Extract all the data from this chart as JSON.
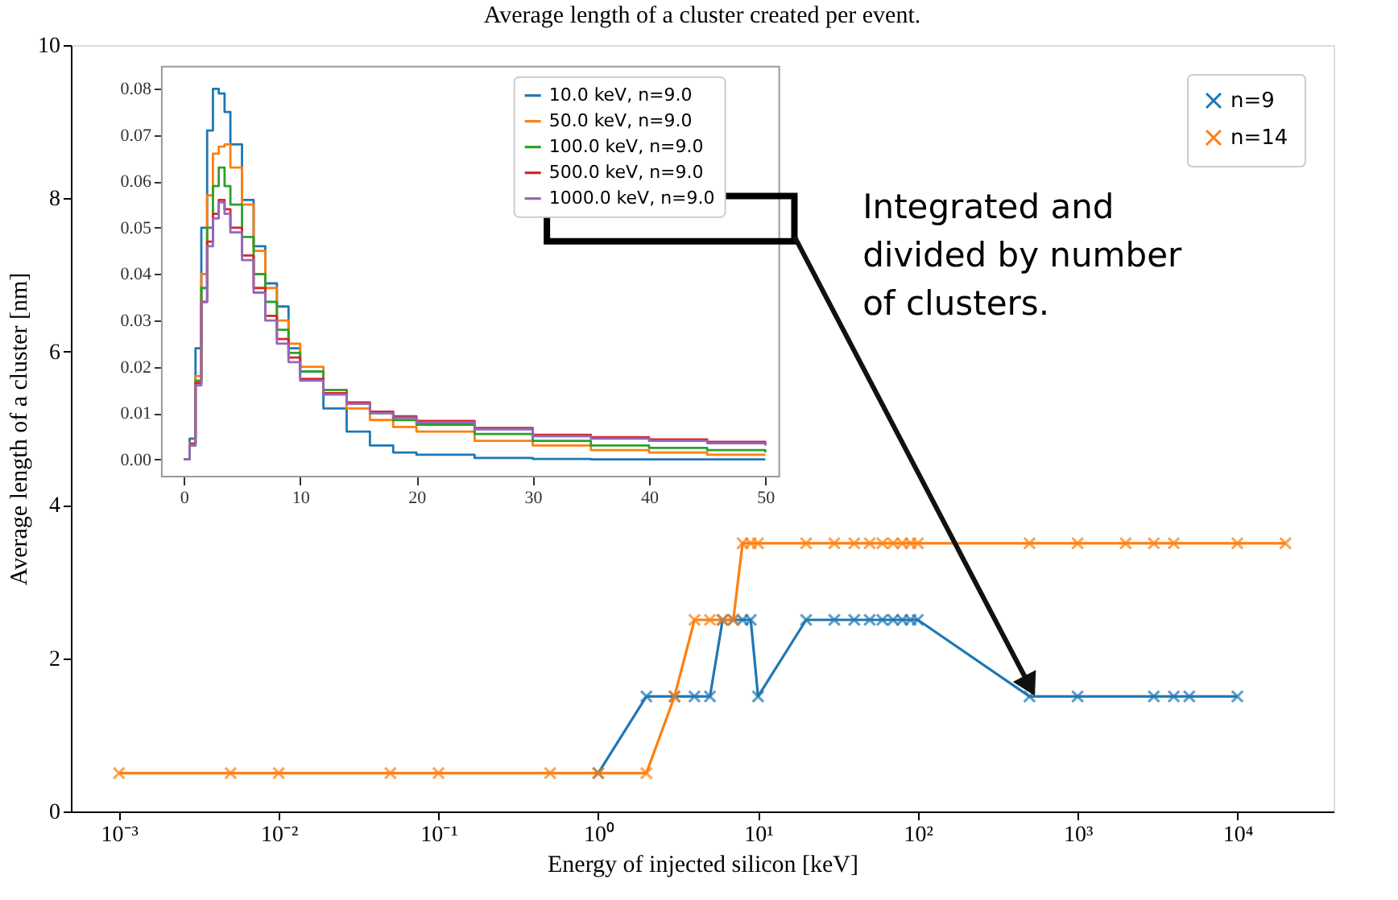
{
  "chart_data": [
    {
      "type": "line",
      "title": "Average length of a cluster created per event.",
      "xlabel": "Energy of injected silicon [keV]",
      "ylabel": "Average length of a cluster [nm]",
      "log": "x",
      "xlim": [
        0.0005,
        40000
      ],
      "xticks": [
        {
          "value": 0.001,
          "label": "10⁻³"
        },
        {
          "value": 0.01,
          "label": "10⁻²"
        },
        {
          "value": 0.1,
          "label": "10⁻¹"
        },
        {
          "value": 1,
          "label": "10⁰"
        },
        {
          "value": 10,
          "label": "10¹"
        },
        {
          "value": 100,
          "label": "10²"
        },
        {
          "value": 1000,
          "label": "10³"
        },
        {
          "value": 10000,
          "label": "10⁴"
        }
      ],
      "ylim": [
        0,
        10
      ],
      "yticks": [
        0,
        2,
        4,
        6,
        8,
        10
      ],
      "marker": "cross",
      "legend": "top right",
      "series": [
        {
          "name": "n=9",
          "color": "#1f77b4",
          "x": [
            1,
            2,
            3,
            4,
            5,
            6,
            7,
            8,
            9,
            10,
            20,
            30,
            40,
            50,
            60,
            70,
            80,
            90,
            100,
            500,
            1000,
            3000,
            4000,
            5000,
            10000
          ],
          "values": [
            0.5,
            1.5,
            1.5,
            1.5,
            1.5,
            2.5,
            2.5,
            2.5,
            2.5,
            1.5,
            2.5,
            2.5,
            2.5,
            2.5,
            2.5,
            2.5,
            2.5,
            2.5,
            2.5,
            1.5,
            1.5,
            1.5,
            1.5,
            1.5,
            1.5
          ]
        },
        {
          "name": "n=14",
          "color": "#ff7f0e",
          "x": [
            0.001,
            0.005,
            0.01,
            0.05,
            0.1,
            0.5,
            1,
            2,
            3,
            4,
            5,
            6,
            7,
            8,
            9,
            10,
            20,
            30,
            40,
            50,
            60,
            70,
            80,
            90,
            100,
            500,
            1000,
            2000,
            3000,
            4000,
            10000,
            20000
          ],
          "values": [
            0.5,
            0.5,
            0.5,
            0.5,
            0.5,
            0.5,
            0.5,
            0.5,
            1.5,
            2.5,
            2.5,
            2.5,
            2.5,
            3.5,
            3.5,
            3.5,
            3.5,
            3.5,
            3.5,
            3.5,
            3.5,
            3.5,
            3.5,
            3.5,
            3.5,
            3.5,
            3.5,
            3.5,
            3.5,
            3.5,
            3.5,
            3.5
          ]
        }
      ],
      "annotations": [
        "Integrated and\ndivided by number\nof clusters."
      ]
    },
    {
      "type": "step",
      "xlim": [
        -1.9,
        51.2
      ],
      "xticks": [
        0,
        10,
        20,
        30,
        40,
        50
      ],
      "ylim": [
        -0.0037,
        0.0848
      ],
      "yticks": [
        {
          "value": 0,
          "label": "0.00"
        },
        {
          "value": 0.01,
          "label": "0.01"
        },
        {
          "value": 0.02,
          "label": "0.02"
        },
        {
          "value": 0.03,
          "label": "0.03"
        },
        {
          "value": 0.04,
          "label": "0.04"
        },
        {
          "value": 0.05,
          "label": "0.05"
        },
        {
          "value": 0.06,
          "label": "0.06"
        },
        {
          "value": 0.07,
          "label": "0.07"
        },
        {
          "value": 0.08,
          "label": "0.08"
        }
      ],
      "legend": "top right",
      "x": [
        0,
        0.5,
        1,
        1.5,
        2,
        2.5,
        3,
        3.5,
        4,
        5,
        6,
        7,
        8,
        9,
        10,
        12,
        14,
        16,
        18,
        20,
        25,
        30,
        35,
        40,
        45,
        50
      ],
      "series": [
        {
          "name": "10.0 keV, n=9.0",
          "color": "#1f77b4",
          "values": [
            0,
            0.0045,
            0.024,
            0.05,
            0.071,
            0.08,
            0.079,
            0.075,
            0.068,
            0.056,
            0.046,
            0.038,
            0.033,
            0.024,
            0.019,
            0.011,
            0.006,
            0.003,
            0.0015,
            0.001,
            0.0003,
            0.0001,
            0,
            0,
            0,
            0
          ]
        },
        {
          "name": "50.0 keV, n=9.0",
          "color": "#ff7f0e",
          "values": [
            0,
            0.0035,
            0.018,
            0.04,
            0.057,
            0.066,
            0.0675,
            0.068,
            0.063,
            0.055,
            0.045,
            0.037,
            0.03,
            0.025,
            0.02,
            0.015,
            0.011,
            0.0085,
            0.007,
            0.006,
            0.004,
            0.003,
            0.002,
            0.0015,
            0.001,
            0.001
          ]
        },
        {
          "name": "100.0 keV, n=9.0",
          "color": "#2ca02c",
          "values": [
            0,
            0.003,
            0.017,
            0.037,
            0.05,
            0.059,
            0.063,
            0.059,
            0.055,
            0.048,
            0.04,
            0.034,
            0.028,
            0.023,
            0.019,
            0.015,
            0.012,
            0.01,
            0.0085,
            0.0075,
            0.0055,
            0.004,
            0.003,
            0.0025,
            0.002,
            0.0015
          ]
        },
        {
          "name": "500.0 keV, n=9.0",
          "color": "#d62728",
          "values": [
            null,
            0.0033,
            0.0165,
            0.034,
            0.047,
            0.053,
            0.056,
            0.054,
            0.05,
            0.044,
            0.037,
            0.031,
            0.026,
            0.022,
            0.0174,
            0.0143,
            0.0123,
            0.0103,
            0.0093,
            0.0083,
            0.0068,
            0.0053,
            0.0048,
            0.0043,
            0.0038,
            0.0033
          ]
        },
        {
          "name": "1000.0 keV, n=9.0",
          "color": "#9467bd",
          "values": [
            0,
            0.003,
            0.016,
            0.034,
            0.046,
            0.052,
            0.0555,
            0.053,
            0.049,
            0.043,
            0.036,
            0.03,
            0.025,
            0.021,
            0.017,
            0.014,
            0.012,
            0.01,
            0.009,
            0.008,
            0.0065,
            0.005,
            0.0045,
            0.004,
            0.0035,
            0.003
          ]
        }
      ]
    }
  ]
}
